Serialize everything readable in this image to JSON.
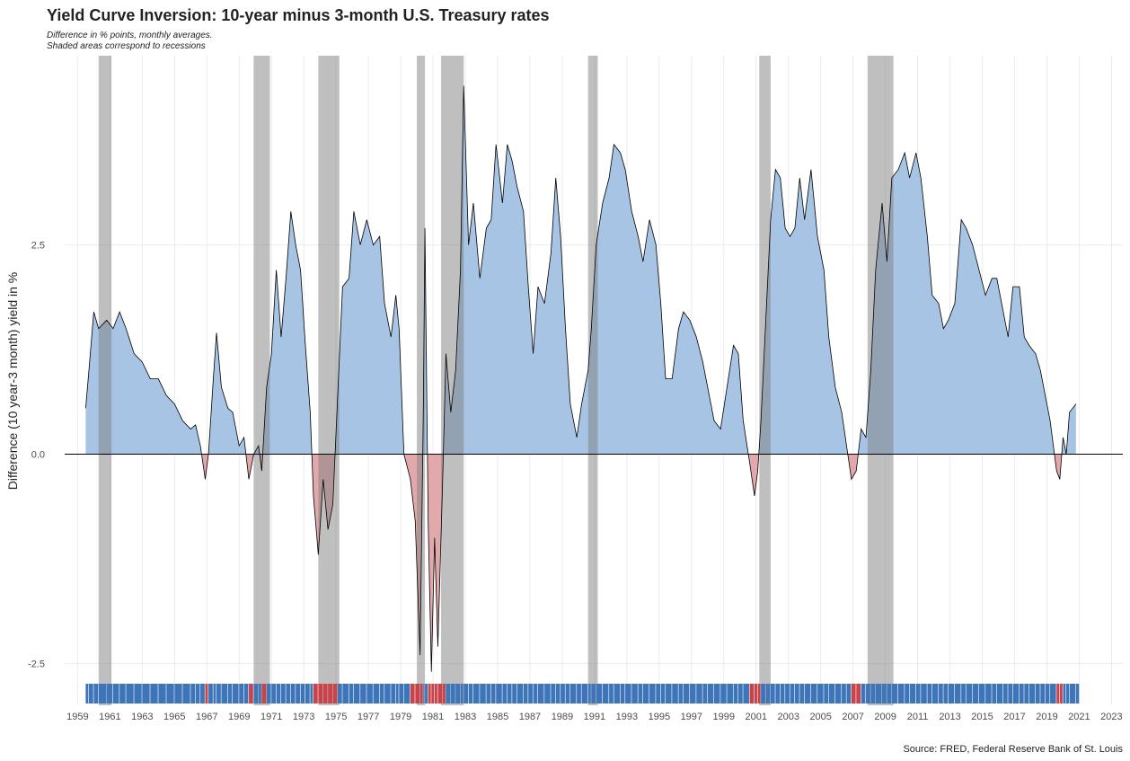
{
  "chart_data": {
    "type": "area",
    "title": "Yield Curve Inversion: 10-year minus 3-month U.S. Treasury rates",
    "subtitle": [
      "Difference in % points, monthly averages.",
      "Shaded areas correspond to recessions"
    ],
    "ylabel": "Difference (10 year-3 month) yield in %",
    "caption": "Source: FRED, Federal Reserve Bank of St. Louis",
    "x": [
      1959.5,
      1959.7,
      1960.0,
      1960.3,
      1960.8,
      1961.2,
      1961.6,
      1962.0,
      1962.5,
      1963.0,
      1963.5,
      1964.0,
      1964.5,
      1965.0,
      1965.5,
      1966.0,
      1966.3,
      1966.6,
      1966.9,
      1967.1,
      1967.4,
      1967.6,
      1967.9,
      1968.3,
      1968.6,
      1969.0,
      1969.3,
      1969.6,
      1969.9,
      1970.2,
      1970.4,
      1970.7,
      1971.0,
      1971.3,
      1971.6,
      1971.9,
      1972.2,
      1972.5,
      1972.8,
      1973.1,
      1973.4,
      1973.6,
      1973.9,
      1974.2,
      1974.5,
      1974.8,
      1975.1,
      1975.4,
      1975.8,
      1976.1,
      1976.5,
      1976.9,
      1977.3,
      1977.7,
      1978.0,
      1978.4,
      1978.7,
      1978.9,
      1979.2,
      1979.6,
      1979.9,
      1980.2,
      1980.4,
      1980.5,
      1980.7,
      1980.9,
      1981.1,
      1981.3,
      1981.6,
      1981.8,
      1982.1,
      1982.4,
      1982.7,
      1982.9,
      1983.2,
      1983.5,
      1983.9,
      1984.3,
      1984.6,
      1984.9,
      1985.3,
      1985.6,
      1985.9,
      1986.2,
      1986.6,
      1986.9,
      1987.2,
      1987.5,
      1987.9,
      1988.3,
      1988.6,
      1988.9,
      1989.2,
      1989.5,
      1989.9,
      1990.2,
      1990.6,
      1990.8,
      1991.1,
      1991.5,
      1991.9,
      1992.2,
      1992.6,
      1992.9,
      1993.3,
      1993.7,
      1994.0,
      1994.4,
      1994.8,
      1995.1,
      1995.4,
      1995.8,
      1996.2,
      1996.5,
      1996.9,
      1997.3,
      1997.7,
      1998.0,
      1998.4,
      1998.8,
      1999.2,
      1999.6,
      1999.9,
      2000.2,
      2000.6,
      2000.9,
      2001.1,
      2001.3,
      2001.6,
      2001.9,
      2002.2,
      2002.5,
      2002.8,
      2003.1,
      2003.4,
      2003.7,
      2004.0,
      2004.4,
      2004.8,
      2005.2,
      2005.5,
      2005.9,
      2006.3,
      2006.6,
      2006.9,
      2007.2,
      2007.5,
      2007.8,
      2008.1,
      2008.4,
      2008.8,
      2009.1,
      2009.4,
      2009.8,
      2010.2,
      2010.5,
      2010.9,
      2011.2,
      2011.6,
      2011.9,
      2012.3,
      2012.6,
      2012.9,
      2013.3,
      2013.7,
      2014.0,
      2014.4,
      2014.8,
      2015.2,
      2015.6,
      2015.9,
      2016.3,
      2016.6,
      2016.9,
      2017.3,
      2017.6,
      2017.9,
      2018.3,
      2018.6,
      2018.9,
      2019.2,
      2019.6,
      2019.8,
      2020.0,
      2020.2,
      2020.4,
      2020.8
    ],
    "values": [
      0.55,
      1.0,
      1.7,
      1.5,
      1.6,
      1.5,
      1.7,
      1.5,
      1.2,
      1.1,
      0.9,
      0.9,
      0.7,
      0.6,
      0.4,
      0.3,
      0.35,
      0.1,
      -0.3,
      0.0,
      0.9,
      1.45,
      0.8,
      0.55,
      0.5,
      0.1,
      0.2,
      -0.3,
      0.0,
      0.1,
      -0.2,
      0.8,
      1.2,
      2.2,
      1.4,
      2.1,
      2.9,
      2.5,
      2.2,
      1.3,
      0.5,
      -0.5,
      -1.2,
      -0.3,
      -0.9,
      -0.6,
      0.7,
      2.0,
      2.1,
      2.9,
      2.5,
      2.8,
      2.5,
      2.6,
      1.8,
      1.4,
      1.9,
      1.5,
      0.0,
      -0.3,
      -0.8,
      -2.4,
      0.5,
      2.7,
      -0.8,
      -2.6,
      -1.0,
      -2.3,
      -0.3,
      1.2,
      0.5,
      1.0,
      2.2,
      4.4,
      2.5,
      3.0,
      2.1,
      2.7,
      2.8,
      3.7,
      3.0,
      3.7,
      3.5,
      3.2,
      2.9,
      2.0,
      1.2,
      2.0,
      1.8,
      2.4,
      3.3,
      2.6,
      1.5,
      0.6,
      0.2,
      0.6,
      1.0,
      1.5,
      2.5,
      3.0,
      3.3,
      3.7,
      3.6,
      3.4,
      2.9,
      2.6,
      2.3,
      2.8,
      2.5,
      1.8,
      0.9,
      0.9,
      1.5,
      1.7,
      1.6,
      1.4,
      1.1,
      0.8,
      0.4,
      0.3,
      0.8,
      1.3,
      1.2,
      0.4,
      -0.1,
      -0.5,
      -0.2,
      0.4,
      1.6,
      2.8,
      3.4,
      3.3,
      2.7,
      2.6,
      2.7,
      3.3,
      2.8,
      3.4,
      2.6,
      2.2,
      1.4,
      0.8,
      0.5,
      0.1,
      -0.3,
      -0.2,
      0.3,
      0.2,
      1.0,
      2.2,
      3.0,
      2.3,
      3.3,
      3.4,
      3.6,
      3.3,
      3.6,
      3.3,
      2.6,
      1.9,
      1.8,
      1.5,
      1.6,
      1.8,
      2.8,
      2.7,
      2.5,
      2.2,
      1.9,
      2.1,
      2.1,
      1.7,
      1.4,
      2.0,
      2.0,
      1.4,
      1.3,
      1.2,
      1.0,
      0.7,
      0.4,
      -0.2,
      -0.3,
      0.2,
      0.0,
      0.5,
      0.6
    ],
    "recessions": [
      [
        1960.3,
        1961.1
      ],
      [
        1969.9,
        1970.9
      ],
      [
        1973.9,
        1975.2
      ],
      [
        1980.0,
        1980.5
      ],
      [
        1981.5,
        1982.9
      ],
      [
        1990.6,
        1991.2
      ],
      [
        2001.2,
        2001.9
      ],
      [
        2007.9,
        2009.5
      ]
    ],
    "xlim": [
      1958.2,
      2023.7
    ],
    "ylim": [
      -3.0,
      4.76
    ],
    "xticks": [
      1959,
      1961,
      1963,
      1965,
      1967,
      1969,
      1971,
      1973,
      1975,
      1977,
      1979,
      1981,
      1983,
      1985,
      1987,
      1989,
      1991,
      1993,
      1995,
      1997,
      1999,
      2001,
      2003,
      2005,
      2007,
      2009,
      2011,
      2013,
      2015,
      2017,
      2019,
      2021,
      2023
    ],
    "yticks": [
      -2.5,
      {
        "value": 0,
        "label": "0.0"
      },
      2.5
    ],
    "grid": true,
    "positive_color": "#a7c4e4",
    "negative_color": "#e2a9ac",
    "rug_positive_color": "#3d75b8",
    "rug_negative_color": "#c9434b",
    "recession_color": "#808080",
    "recession_opacity": 0.5
  }
}
